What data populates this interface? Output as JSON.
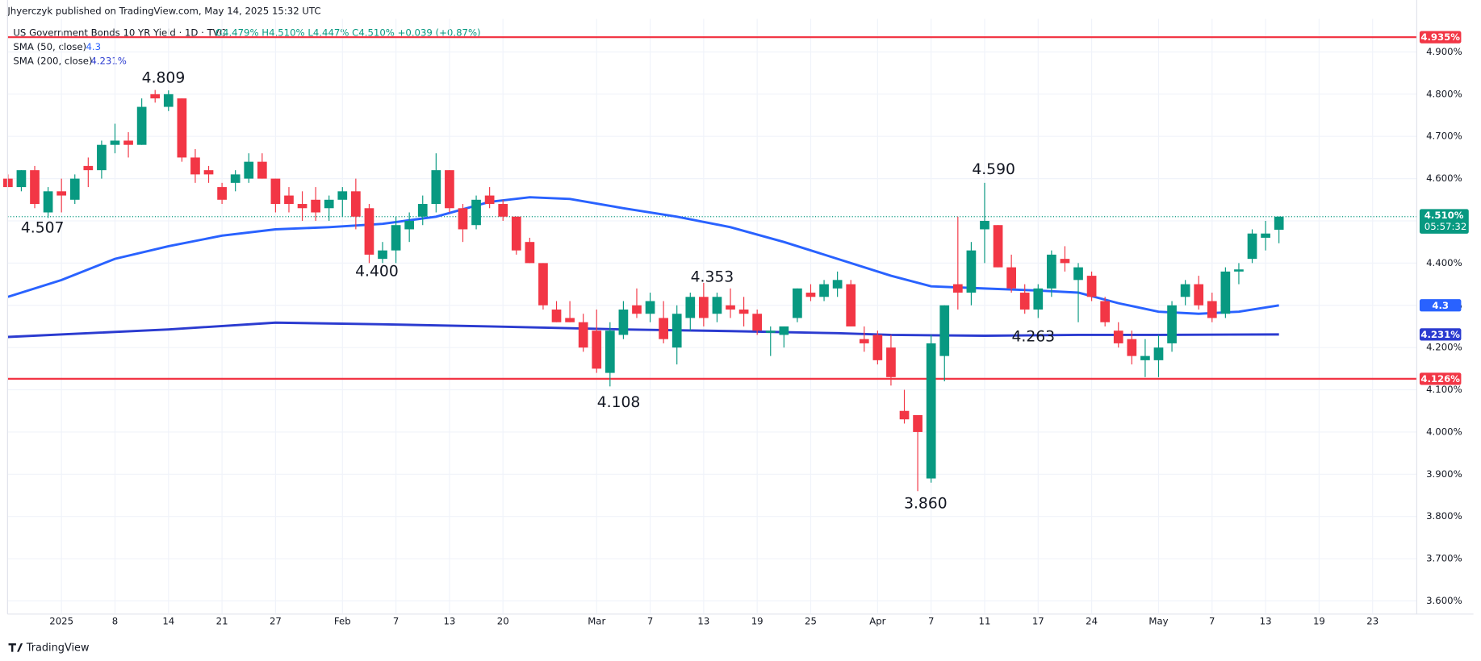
{
  "chart_data": {
    "type": "candlestick",
    "publisher": "Jhyerczyk published on TradingView.com, May 14, 2025 15:32 UTC",
    "title": "US Government Bonds 10 YR Yield · 1D · TVC",
    "ohlc_text": "O4.479% H4.510% L4.447% C4.510% +0.039 (+0.87%)",
    "footer": "TradingView",
    "up_color": "#089981",
    "down_color": "#f23645",
    "x": [
      -4,
      -3,
      -2,
      -1,
      0,
      1,
      2,
      3,
      4,
      5,
      6,
      7,
      8,
      9,
      10,
      11,
      12,
      13,
      14,
      15,
      16,
      17,
      18,
      19,
      20,
      21,
      22,
      23,
      24,
      25,
      26,
      27,
      28,
      29,
      30,
      31,
      32,
      33,
      34,
      35,
      36,
      37,
      38,
      39,
      40,
      41,
      42,
      43,
      44,
      45,
      46,
      47,
      48,
      49,
      50,
      51,
      52,
      53,
      54,
      55,
      56,
      57,
      58,
      59,
      60,
      61,
      62,
      63,
      64,
      65,
      66,
      67,
      68,
      69,
      70,
      71,
      72,
      73,
      74,
      75,
      76,
      77,
      78,
      79,
      80,
      81,
      82,
      83,
      84,
      85,
      86,
      87,
      88,
      89,
      90,
      91
    ],
    "open": [
      4.6,
      4.58,
      4.62,
      4.52,
      4.57,
      4.55,
      4.63,
      4.62,
      4.68,
      4.69,
      4.68,
      4.8,
      4.77,
      4.79,
      4.65,
      4.62,
      4.58,
      4.59,
      4.6,
      4.64,
      4.6,
      4.56,
      4.54,
      4.55,
      4.53,
      4.55,
      4.57,
      4.53,
      4.41,
      4.43,
      4.48,
      4.51,
      4.54,
      4.62,
      4.53,
      4.49,
      4.56,
      4.54,
      4.51,
      4.45,
      4.4,
      4.29,
      4.27,
      4.26,
      4.24,
      4.14,
      4.23,
      4.3,
      4.28,
      4.27,
      4.2,
      4.27,
      4.32,
      4.28,
      4.3,
      4.29,
      4.28,
      4.235,
      4.23,
      4.27,
      4.33,
      4.32,
      4.34,
      4.35,
      4.22,
      4.23,
      4.2,
      4.05,
      4.04,
      3.89,
      4.18,
      4.35,
      4.33,
      4.48,
      4.49,
      4.39,
      4.33,
      4.29,
      4.34,
      4.41,
      4.36,
      4.37,
      4.31,
      4.24,
      4.22,
      4.17,
      4.17,
      4.21,
      4.32,
      4.35,
      4.31,
      4.28,
      4.38,
      4.41,
      4.46,
      4.479
    ],
    "high": [
      4.61,
      4.62,
      4.63,
      4.58,
      4.6,
      4.61,
      4.65,
      4.69,
      4.73,
      4.71,
      4.79,
      4.81,
      4.809,
      4.79,
      4.67,
      4.63,
      4.59,
      4.62,
      4.66,
      4.66,
      4.6,
      4.58,
      4.57,
      4.58,
      4.56,
      4.58,
      4.6,
      4.54,
      4.45,
      4.51,
      4.52,
      4.56,
      4.66,
      4.62,
      4.54,
      4.56,
      4.58,
      4.55,
      4.51,
      4.46,
      4.4,
      4.31,
      4.31,
      4.28,
      4.29,
      4.26,
      4.31,
      4.34,
      4.33,
      4.31,
      4.3,
      4.33,
      4.353,
      4.33,
      4.34,
      4.32,
      4.29,
      4.25,
      4.25,
      4.34,
      4.35,
      4.36,
      4.38,
      4.36,
      4.25,
      4.24,
      4.23,
      4.1,
      4.04,
      4.23,
      4.3,
      4.51,
      4.45,
      4.59,
      4.49,
      4.42,
      4.35,
      4.35,
      4.43,
      4.44,
      4.4,
      4.38,
      4.32,
      4.26,
      4.24,
      4.22,
      4.23,
      4.31,
      4.36,
      4.37,
      4.33,
      4.39,
      4.4,
      4.48,
      4.5,
      4.51
    ],
    "low": [
      4.58,
      4.57,
      4.53,
      4.507,
      4.52,
      4.54,
      4.58,
      4.6,
      4.66,
      4.65,
      4.68,
      4.78,
      4.76,
      4.64,
      4.59,
      4.59,
      4.54,
      4.57,
      4.59,
      4.6,
      4.52,
      4.52,
      4.5,
      4.5,
      4.5,
      4.51,
      4.48,
      4.4,
      4.4,
      4.4,
      4.45,
      4.49,
      4.52,
      4.52,
      4.45,
      4.48,
      4.53,
      4.5,
      4.42,
      4.4,
      4.29,
      4.26,
      4.26,
      4.19,
      4.14,
      4.108,
      4.22,
      4.27,
      4.26,
      4.21,
      4.16,
      4.24,
      4.25,
      4.26,
      4.27,
      4.25,
      4.23,
      4.18,
      4.2,
      4.26,
      4.31,
      4.31,
      4.32,
      4.25,
      4.19,
      4.16,
      4.11,
      4.02,
      3.86,
      3.88,
      4.12,
      4.29,
      4.3,
      4.4,
      4.39,
      4.33,
      4.28,
      4.27,
      4.32,
      4.38,
      4.26,
      4.31,
      4.25,
      4.2,
      4.16,
      4.13,
      4.13,
      4.19,
      4.3,
      4.29,
      4.26,
      4.27,
      4.35,
      4.4,
      4.43,
      4.447
    ],
    "close": [
      4.58,
      4.62,
      4.54,
      4.57,
      4.56,
      4.6,
      4.62,
      4.68,
      4.69,
      4.68,
      4.77,
      4.79,
      4.8,
      4.65,
      4.61,
      4.61,
      4.55,
      4.61,
      4.64,
      4.6,
      4.54,
      4.54,
      4.53,
      4.52,
      4.55,
      4.57,
      4.51,
      4.42,
      4.43,
      4.49,
      4.5,
      4.54,
      4.62,
      4.53,
      4.48,
      4.55,
      4.54,
      4.51,
      4.43,
      4.4,
      4.3,
      4.26,
      4.26,
      4.2,
      4.15,
      4.24,
      4.29,
      4.28,
      4.31,
      4.22,
      4.28,
      4.32,
      4.27,
      4.32,
      4.29,
      4.28,
      4.24,
      4.24,
      4.25,
      4.34,
      4.32,
      4.35,
      4.36,
      4.25,
      4.21,
      4.17,
      4.13,
      4.03,
      4.0,
      4.21,
      4.3,
      4.33,
      4.43,
      4.5,
      4.39,
      4.34,
      4.29,
      4.34,
      4.42,
      4.4,
      4.39,
      4.32,
      4.26,
      4.21,
      4.18,
      4.18,
      4.2,
      4.3,
      4.35,
      4.3,
      4.27,
      4.38,
      4.385,
      4.47,
      4.47,
      4.51
    ],
    "xlim": [
      -4.03,
      101.3
    ],
    "ylim": [
      3.571,
      4.956
    ],
    "xticks": [
      {
        "value": 0,
        "label": "2025"
      },
      {
        "value": 4,
        "label": "8"
      },
      {
        "value": 8,
        "label": "14"
      },
      {
        "value": 12,
        "label": "21"
      },
      {
        "value": 16,
        "label": "27"
      },
      {
        "value": 21,
        "label": "Feb"
      },
      {
        "value": 25,
        "label": "7"
      },
      {
        "value": 29,
        "label": "13"
      },
      {
        "value": 33,
        "label": "20"
      },
      {
        "value": 40,
        "label": "Mar"
      },
      {
        "value": 44,
        "label": "7"
      },
      {
        "value": 48,
        "label": "13"
      },
      {
        "value": 52,
        "label": "19"
      },
      {
        "value": 56,
        "label": "25"
      },
      {
        "value": 61,
        "label": "Apr"
      },
      {
        "value": 65,
        "label": "7"
      },
      {
        "value": 69,
        "label": "11"
      },
      {
        "value": 73,
        "label": "17"
      },
      {
        "value": 77,
        "label": "24"
      },
      {
        "value": 82,
        "label": "May"
      },
      {
        "value": 86,
        "label": "7"
      },
      {
        "value": 90,
        "label": "13"
      },
      {
        "value": 94,
        "label": "19"
      },
      {
        "value": 98,
        "label": "23"
      }
    ],
    "yticks": [
      {
        "value": 3.6,
        "label": "3.600%"
      },
      {
        "value": 3.7,
        "label": "3.700%"
      },
      {
        "value": 3.8,
        "label": "3.800%"
      },
      {
        "value": 3.9,
        "label": "3.900%"
      },
      {
        "value": 4.0,
        "label": "4.000%"
      },
      {
        "value": 4.1,
        "label": "4.100%"
      },
      {
        "value": 4.2,
        "label": "4.200%"
      },
      {
        "value": 4.3,
        "label": "4.300%"
      },
      {
        "value": 4.4,
        "label": "4.400%"
      },
      {
        "value": 4.5,
        "label": "4.500%"
      },
      {
        "value": 4.6,
        "label": "4.600%"
      },
      {
        "value": 4.7,
        "label": "4.700%"
      },
      {
        "value": 4.8,
        "label": "4.800%"
      },
      {
        "value": 4.9,
        "label": "4.900%"
      }
    ],
    "grid": true,
    "series": [
      {
        "name": "SMA (50, close)",
        "color": "#2962ff",
        "value_label": "4.3",
        "last": 4.3,
        "x": [
          -4,
          0,
          4,
          8,
          12,
          16,
          20,
          24,
          28,
          32,
          35,
          38,
          42,
          46,
          50,
          54,
          58,
          62,
          65,
          69,
          73,
          76,
          79,
          82,
          85,
          88,
          91
        ],
        "values": [
          4.32,
          4.36,
          4.41,
          4.44,
          4.465,
          4.48,
          4.485,
          4.493,
          4.51,
          4.545,
          4.556,
          4.552,
          4.53,
          4.51,
          4.485,
          4.45,
          4.41,
          4.37,
          4.345,
          4.34,
          4.335,
          4.33,
          4.305,
          4.285,
          4.28,
          4.285,
          4.3
        ]
      },
      {
        "name": "SMA (200, close)",
        "color": "#2b3bd0",
        "value_label": "4.231%",
        "last": 4.231,
        "x": [
          -4,
          8,
          16,
          24,
          32,
          42,
          50,
          58,
          62,
          69,
          76,
          82,
          91
        ],
        "values": [
          4.225,
          4.243,
          4.259,
          4.255,
          4.25,
          4.243,
          4.239,
          4.234,
          4.23,
          4.228,
          4.23,
          4.23,
          4.231
        ]
      }
    ],
    "hlines": [
      {
        "value": 4.935,
        "label": "4.935%",
        "color": "#f23645"
      },
      {
        "value": 4.126,
        "label": "4.126%",
        "color": "#f23645"
      }
    ],
    "last_price": {
      "value": 4.51,
      "label": "4.510%",
      "countdown": "05:57:32",
      "color": "#089981"
    },
    "annotations": [
      "4.809",
      "4.507",
      "4.400",
      "4.108",
      "4.353",
      "3.860",
      "4.590",
      "4.263"
    ]
  }
}
